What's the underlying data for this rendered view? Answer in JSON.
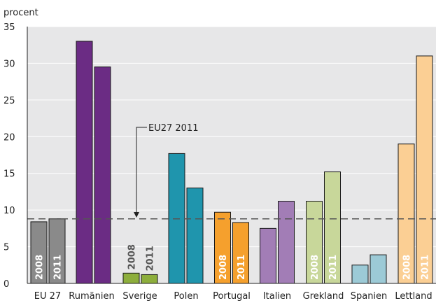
{
  "chart_data": {
    "type": "bar",
    "ylabel": "procent",
    "ylim": [
      0,
      35
    ],
    "yticks": [
      0,
      5,
      10,
      15,
      20,
      25,
      30,
      35
    ],
    "grid": "horizontal",
    "categories": [
      "EU 27",
      "Rumänien",
      "Sverige",
      "Polen",
      "Portugal",
      "Italien",
      "Grekland",
      "Spanien",
      "Lettland"
    ],
    "years": [
      "2008",
      "2011"
    ],
    "colors": [
      [
        "#8a8a8a",
        "#8a8a8a"
      ],
      [
        "#6b2c84",
        "#6b2c84"
      ],
      [
        "#8dae3c",
        "#8dae3c"
      ],
      [
        "#1f95ad",
        "#1f95ad"
      ],
      [
        "#f5a02d",
        "#f5a02d"
      ],
      [
        "#a27db6",
        "#a27db6"
      ],
      [
        "#c8d79a",
        "#c8d79a"
      ],
      [
        "#9ccad6",
        "#9ccad6"
      ],
      [
        "#fbcf94",
        "#fbcf94"
      ]
    ],
    "values": [
      [
        8.4,
        8.8
      ],
      [
        33.0,
        29.5
      ],
      [
        1.4,
        1.2
      ],
      [
        17.7,
        13.0
      ],
      [
        9.7,
        8.3
      ],
      [
        7.5,
        11.2
      ],
      [
        11.2,
        15.2
      ],
      [
        2.5,
        3.9
      ],
      [
        19.0,
        31.0
      ]
    ],
    "year_labels_inside": [
      true,
      false,
      false,
      false,
      true,
      false,
      true,
      false,
      true
    ],
    "year_labels_outside": [
      false,
      false,
      true,
      false,
      false,
      false,
      false,
      false,
      false
    ],
    "reference_line": {
      "value": 8.8,
      "label": "EU27 2011"
    }
  }
}
